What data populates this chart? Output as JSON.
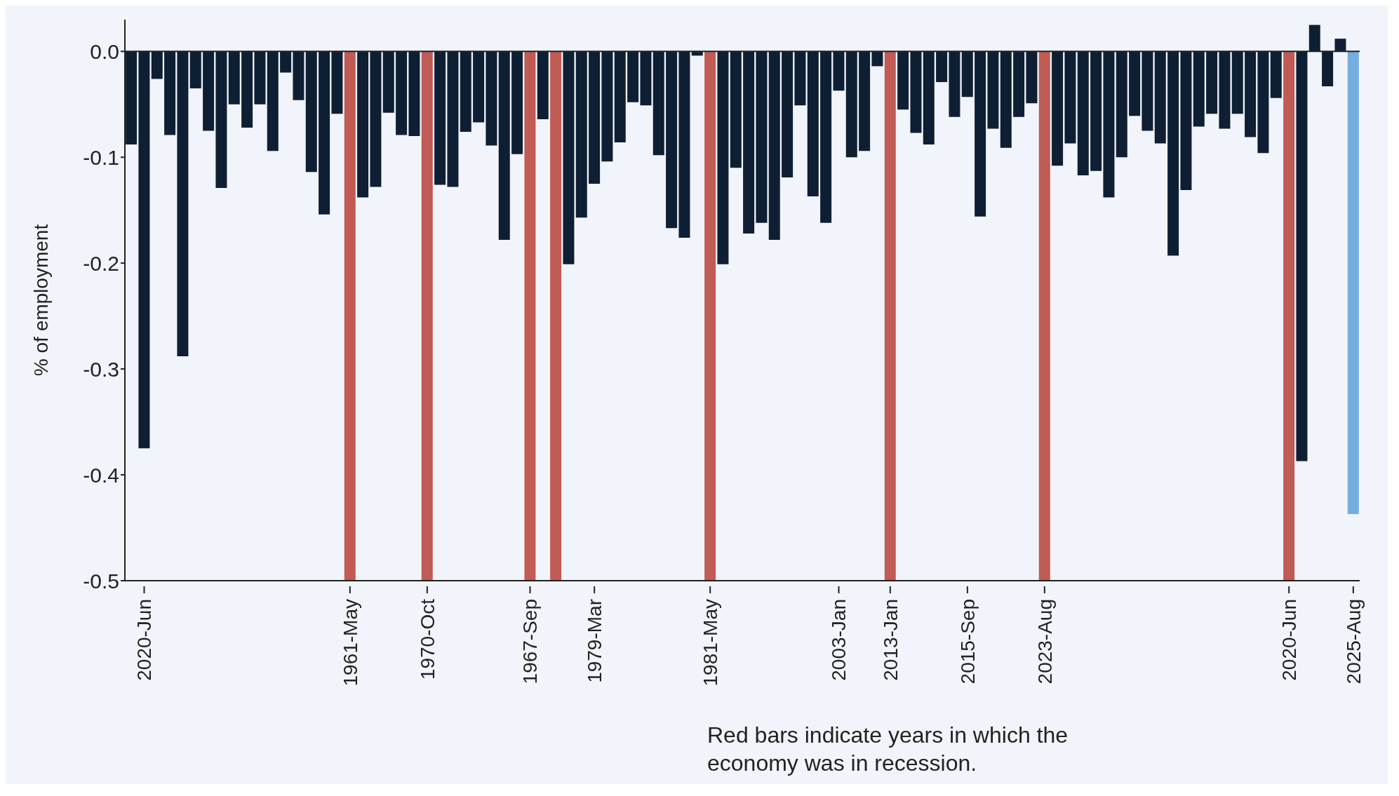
{
  "chart_data": {
    "type": "bar",
    "ylabel": "% of employment",
    "categories": [
      null,
      "2020-Jun",
      null,
      null,
      null,
      null,
      null,
      null,
      null,
      null,
      null,
      null,
      null,
      null,
      null,
      null,
      null,
      "1961-May",
      null,
      null,
      null,
      null,
      null,
      "1970-Oct",
      null,
      null,
      null,
      null,
      null,
      null,
      null,
      "1967-Sep",
      null,
      null,
      null,
      null,
      "1979-Mar",
      null,
      null,
      null,
      null,
      null,
      null,
      null,
      null,
      "1981-May",
      null,
      null,
      null,
      null,
      null,
      null,
      null,
      null,
      null,
      "2003-Jan",
      null,
      null,
      null,
      "2013-Jan",
      null,
      null,
      null,
      null,
      null,
      "2015-Sep",
      null,
      null,
      null,
      null,
      null,
      "2023-Aug",
      null,
      null,
      null,
      null,
      null,
      null,
      null,
      null,
      null,
      null,
      null,
      null,
      null,
      null,
      null,
      null,
      null,
      null,
      "2020-Jun",
      null,
      null,
      null,
      null,
      "2025-Aug"
    ],
    "values": [
      -0.088,
      -0.375,
      -0.026,
      -0.079,
      -0.288,
      -0.035,
      -0.075,
      -0.129,
      -0.05,
      -0.072,
      -0.05,
      -0.094,
      -0.02,
      -0.046,
      -0.114,
      -0.154,
      -0.059,
      -0.5,
      -0.138,
      -0.128,
      -0.058,
      -0.079,
      -0.08,
      -0.5,
      -0.126,
      -0.128,
      -0.076,
      -0.067,
      -0.089,
      -0.178,
      -0.097,
      -0.5,
      -0.064,
      -0.5,
      -0.201,
      -0.157,
      -0.125,
      -0.104,
      -0.086,
      -0.048,
      -0.051,
      -0.098,
      -0.167,
      -0.176,
      -0.004,
      -0.5,
      -0.201,
      -0.11,
      -0.172,
      -0.162,
      -0.178,
      -0.119,
      -0.051,
      -0.137,
      -0.162,
      -0.037,
      -0.1,
      -0.094,
      -0.014,
      -0.5,
      -0.055,
      -0.077,
      -0.088,
      -0.029,
      -0.062,
      -0.043,
      -0.156,
      -0.073,
      -0.091,
      -0.062,
      -0.049,
      -0.5,
      -0.108,
      -0.087,
      -0.117,
      -0.113,
      -0.138,
      -0.1,
      -0.061,
      -0.075,
      -0.087,
      -0.193,
      -0.131,
      -0.071,
      -0.059,
      -0.073,
      -0.059,
      -0.081,
      -0.096,
      -0.044,
      -0.5,
      -0.387,
      0.025,
      -0.033,
      0.012,
      -0.437
    ],
    "colors": [
      "#0f1f33",
      "#0f1f33",
      "#0f1f33",
      "#0f1f33",
      "#0f1f33",
      "#0f1f33",
      "#0f1f33",
      "#0f1f33",
      "#0f1f33",
      "#0f1f33",
      "#0f1f33",
      "#0f1f33",
      "#0f1f33",
      "#0f1f33",
      "#0f1f33",
      "#0f1f33",
      "#0f1f33",
      "#c15b55",
      "#0f1f33",
      "#0f1f33",
      "#0f1f33",
      "#0f1f33",
      "#0f1f33",
      "#c15b55",
      "#0f1f33",
      "#0f1f33",
      "#0f1f33",
      "#0f1f33",
      "#0f1f33",
      "#0f1f33",
      "#0f1f33",
      "#c15b55",
      "#0f1f33",
      "#c15b55",
      "#0f1f33",
      "#0f1f33",
      "#0f1f33",
      "#0f1f33",
      "#0f1f33",
      "#0f1f33",
      "#0f1f33",
      "#0f1f33",
      "#0f1f33",
      "#0f1f33",
      "#0f1f33",
      "#c15b55",
      "#0f1f33",
      "#0f1f33",
      "#0f1f33",
      "#0f1f33",
      "#0f1f33",
      "#0f1f33",
      "#0f1f33",
      "#0f1f33",
      "#0f1f33",
      "#0f1f33",
      "#0f1f33",
      "#0f1f33",
      "#0f1f33",
      "#c15b55",
      "#0f1f33",
      "#0f1f33",
      "#0f1f33",
      "#0f1f33",
      "#0f1f33",
      "#0f1f33",
      "#0f1f33",
      "#0f1f33",
      "#0f1f33",
      "#0f1f33",
      "#0f1f33",
      "#c15b55",
      "#0f1f33",
      "#0f1f33",
      "#0f1f33",
      "#0f1f33",
      "#0f1f33",
      "#0f1f33",
      "#0f1f33",
      "#0f1f33",
      "#0f1f33",
      "#0f1f33",
      "#0f1f33",
      "#0f1f33",
      "#0f1f33",
      "#0f1f33",
      "#0f1f33",
      "#0f1f33",
      "#0f1f33",
      "#0f1f33",
      "#c15b55",
      "#0f1f33",
      "#0f1f33",
      "#0f1f33",
      "#0f1f33",
      "#74aee0"
    ],
    "ylim": [
      -0.5,
      0.03
    ],
    "yticks": [
      -0.5,
      -0.4,
      -0.3,
      -0.2,
      -0.1,
      {
        "value": 0,
        "label": "0.0"
      }
    ],
    "ref_lines": [
      {
        "axis": "y",
        "value": 0,
        "color": "#222222"
      }
    ],
    "annotations": [
      "Red bars indicate years in which the economy was in recession."
    ]
  }
}
